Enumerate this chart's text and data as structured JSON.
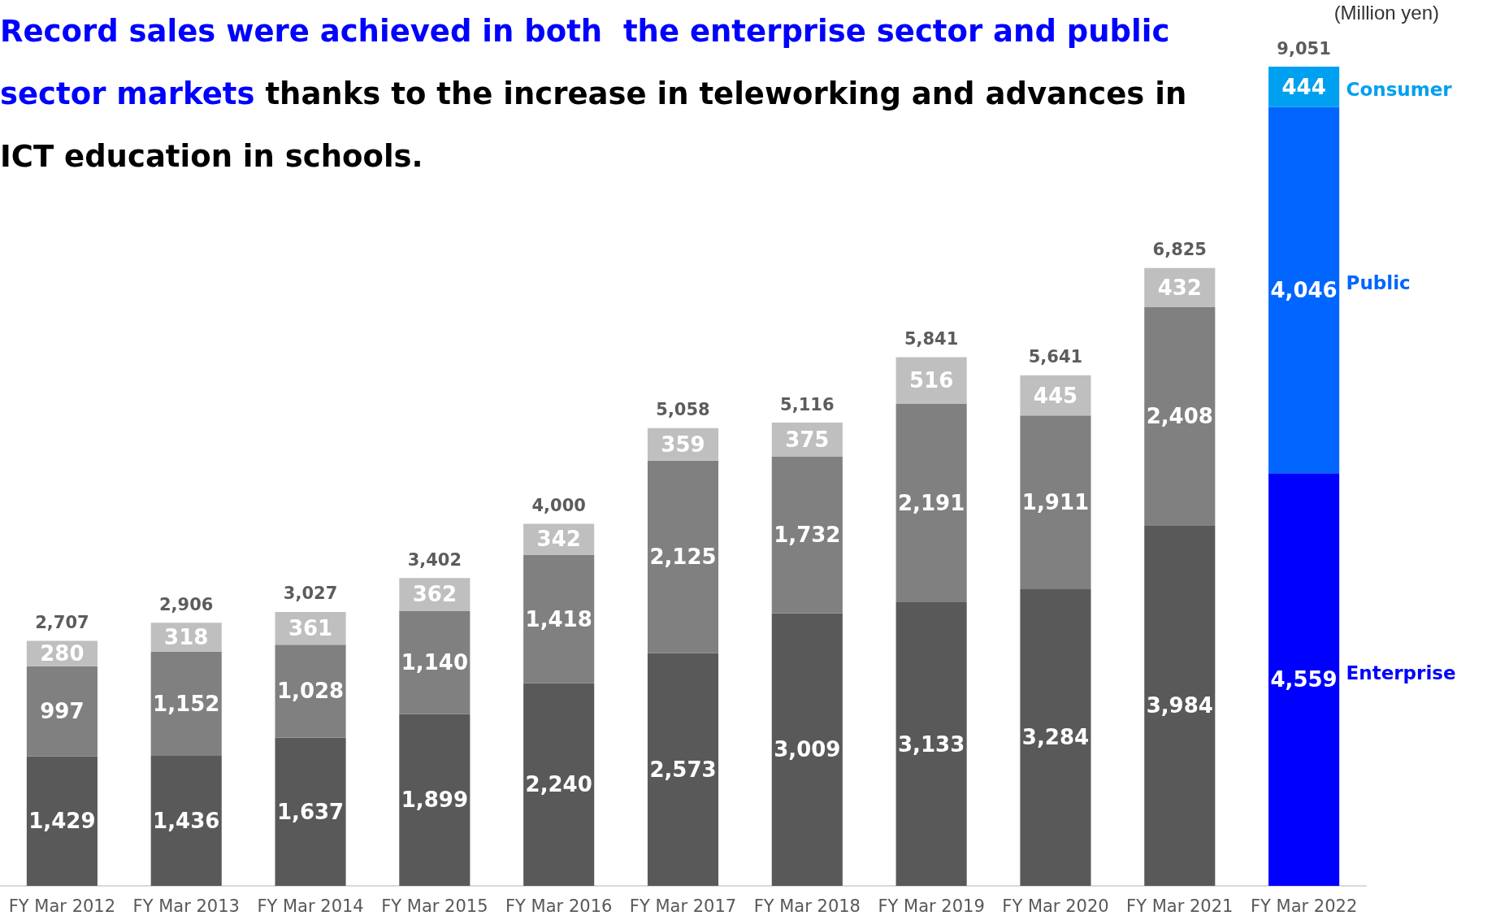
{
  "chart_data": {
    "type": "bar",
    "stacked": true,
    "title": "Record sales were achieved in both  the enterprise sector and public sector markets",
    "subtitle": "thanks to the increase in teleworking and advances in ICT education in schools.",
    "ylabel": "(Million yen)",
    "categories": [
      "FY Mar 2012",
      "FY Mar 2013",
      "FY Mar 2014",
      "FY Mar 2015",
      "FY Mar 2016",
      "FY Mar 2017",
      "FY Mar 2018",
      "FY Mar 2019",
      "FY Mar 2020",
      "FY Mar 2021",
      "FY Mar 2022"
    ],
    "series": [
      {
        "name": "Enterprise",
        "colors": [
          "#595959",
          "#595959",
          "#595959",
          "#595959",
          "#595959",
          "#595959",
          "#595959",
          "#595959",
          "#595959",
          "#595959",
          "#0000ff"
        ],
        "values": [
          1429,
          1436,
          1637,
          1899,
          2240,
          2573,
          3009,
          3133,
          3284,
          3984,
          4559
        ],
        "value_labels": [
          "1,429",
          "1,436",
          "1,637",
          "1,899",
          "2,240",
          "2,573",
          "3,009",
          "3,133",
          "3,284",
          "3,984",
          "4,559"
        ]
      },
      {
        "name": "Public",
        "colors": [
          "#808080",
          "#808080",
          "#808080",
          "#808080",
          "#808080",
          "#808080",
          "#808080",
          "#808080",
          "#808080",
          "#808080",
          "#0066ff"
        ],
        "values": [
          997,
          1152,
          1028,
          1140,
          1418,
          2125,
          1732,
          2191,
          1911,
          2408,
          4046
        ],
        "value_labels": [
          "997",
          "1,152",
          "1,028",
          "1,140",
          "1,418",
          "2,125",
          "1,732",
          "2,191",
          "1,911",
          "2,408",
          "4,046"
        ]
      },
      {
        "name": "Consumer",
        "colors": [
          "#bfbfbf",
          "#bfbfbf",
          "#bfbfbf",
          "#bfbfbf",
          "#bfbfbf",
          "#bfbfbf",
          "#bfbfbf",
          "#bfbfbf",
          "#bfbfbf",
          "#bfbfbf",
          "#00a0f0"
        ],
        "values": [
          280,
          318,
          361,
          362,
          342,
          359,
          375,
          516,
          445,
          432,
          444
        ],
        "value_labels": [
          "280",
          "318",
          "361",
          "362",
          "342",
          "359",
          "375",
          "516",
          "445",
          "432",
          "444"
        ]
      }
    ],
    "totals": [
      "2,707",
      "2,906",
      "3,027",
      "3,402",
      "4,000",
      "5,058",
      "5,116",
      "5,841",
      "5,641",
      "6,825",
      "9,051"
    ],
    "legend": false
  }
}
